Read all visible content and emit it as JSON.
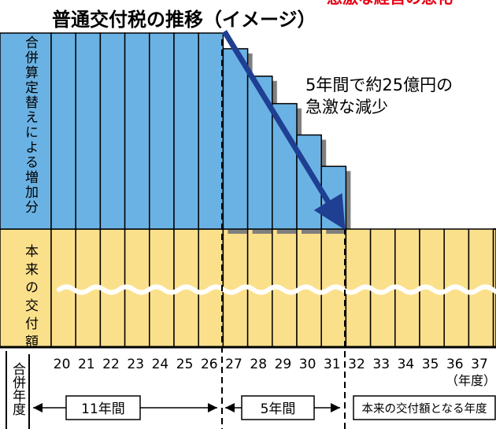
{
  "chart_data": {
    "type": "bar",
    "title": "普通交付税の推移（イメージ）",
    "top_clipped_text": "急激な経営の悪化",
    "vertical_labels": {
      "upper": "合併算定替えによる増加分",
      "lower": "本来の交付額",
      "axis": "合併年度"
    },
    "categories": [
      "20",
      "21",
      "22",
      "23",
      "24",
      "25",
      "26",
      "27",
      "28",
      "29",
      "30",
      "31",
      "32",
      "33",
      "34",
      "35",
      "36",
      "37"
    ],
    "xunit": "（年度）",
    "series": [
      {
        "name": "合併算定替えによる増加分",
        "values": [
          100,
          100,
          100,
          100,
          100,
          100,
          100,
          92,
          78,
          64,
          48,
          32,
          0,
          0,
          0,
          0,
          0,
          0
        ]
      },
      {
        "name": "本来の交付額",
        "values": [
          60,
          60,
          60,
          60,
          60,
          60,
          60,
          60,
          60,
          60,
          60,
          60,
          60,
          60,
          60,
          60,
          60,
          60
        ]
      }
    ],
    "annotation": {
      "line1": "5年間で約25億円の",
      "line2": "急激な減少"
    },
    "periods": [
      {
        "label": "11年間"
      },
      {
        "label": "5年間"
      },
      {
        "label": "本来の交付額となる年度"
      }
    ],
    "colors": {
      "increase": "#6bb2e4",
      "base": "#fbe08c",
      "arrow": "#1f3f93",
      "shadow": "#7f7f7f",
      "title_red": "#e60012"
    }
  }
}
